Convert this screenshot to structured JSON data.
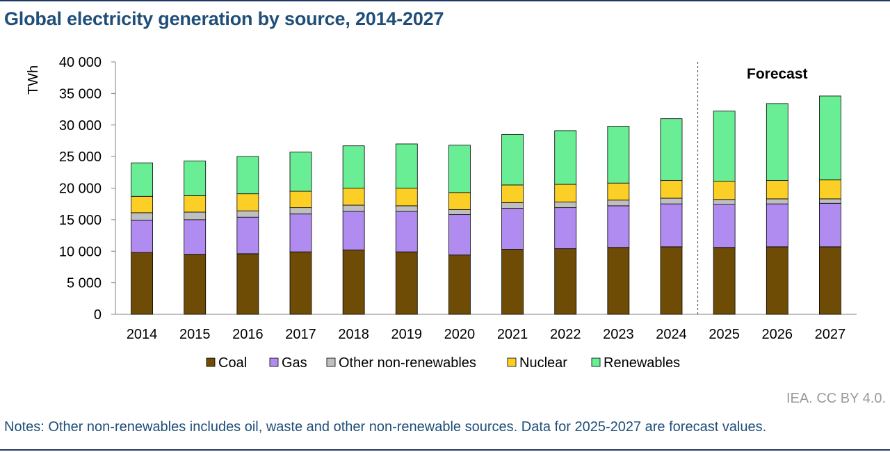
{
  "title": "Global electricity generation by source, 2014-2027",
  "credit": "IEA. CC BY 4.0.",
  "notes": "Notes: Other non-renewables includes oil, waste and other non-renewable sources. Data for 2025-2027 are forecast values.",
  "chart_data": {
    "type": "bar",
    "stacked": true,
    "ylabel": "TWh",
    "ylim": [
      0,
      40000
    ],
    "yticks": [
      0,
      5000,
      10000,
      15000,
      20000,
      25000,
      30000,
      35000,
      40000
    ],
    "ytick_labels": [
      "0",
      "5 000",
      "10 000",
      "15 000",
      "20 000",
      "25 000",
      "30 000",
      "35 000",
      "40 000"
    ],
    "categories": [
      "2014",
      "2015",
      "2016",
      "2017",
      "2018",
      "2019",
      "2020",
      "2021",
      "2022",
      "2023",
      "2024",
      "2025",
      "2026",
      "2027"
    ],
    "annotation": "Forecast",
    "forecast_from": "2025",
    "legend_position": "bottom",
    "grid": false,
    "series": [
      {
        "name": "Coal",
        "color": "#6e4c06",
        "values": [
          9800,
          9500,
          9600,
          9900,
          10200,
          9900,
          9400,
          10300,
          10400,
          10600,
          10700,
          10600,
          10700,
          10700
        ]
      },
      {
        "name": "Gas",
        "color": "#b18cf0",
        "values": [
          5100,
          5500,
          5800,
          6000,
          6100,
          6400,
          6400,
          6500,
          6500,
          6600,
          6800,
          6800,
          6800,
          6900
        ]
      },
      {
        "name": "Other non-renewables",
        "color": "#bfbfbf",
        "values": [
          1200,
          1200,
          1000,
          1000,
          1000,
          900,
          800,
          900,
          900,
          900,
          900,
          800,
          800,
          700
        ]
      },
      {
        "name": "Nuclear",
        "color": "#fccf26",
        "values": [
          2600,
          2600,
          2700,
          2600,
          2700,
          2800,
          2700,
          2800,
          2800,
          2700,
          2800,
          2900,
          2900,
          3000
        ]
      },
      {
        "name": "Renewables",
        "color": "#69ee96",
        "values": [
          5300,
          5500,
          5900,
          6200,
          6700,
          7000,
          7500,
          8000,
          8500,
          9000,
          9800,
          11100,
          12200,
          13300
        ]
      }
    ]
  }
}
